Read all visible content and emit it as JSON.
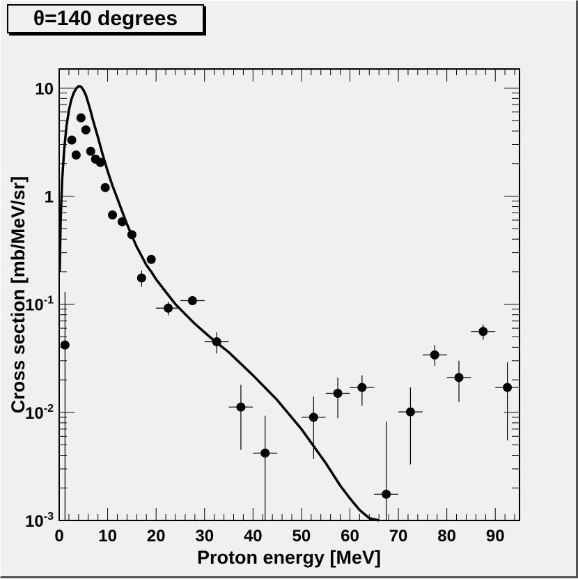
{
  "chart_data": {
    "type": "scatter",
    "title": "θ=140 degrees",
    "xlabel": "Proton energy [MeV]",
    "ylabel": "Cross section [mb/MeV/sr]",
    "xlim": [
      0,
      95
    ],
    "ylim": [
      0.001,
      15
    ],
    "yscale": "log",
    "grid": false,
    "x_ticks": [
      0,
      10,
      20,
      30,
      40,
      50,
      60,
      70,
      80,
      90
    ],
    "y_ticks": [
      {
        "value": 10,
        "mantissa": "10",
        "exp": ""
      },
      {
        "value": 1,
        "mantissa": "1",
        "exp": ""
      },
      {
        "value": 0.1,
        "mantissa": "10",
        "exp": "-1"
      },
      {
        "value": 0.01,
        "mantissa": "10",
        "exp": "-2"
      },
      {
        "value": 0.001,
        "mantissa": "10",
        "exp": "-3"
      }
    ],
    "series": [
      {
        "kind": "points-with-errors",
        "points": [
          {
            "x": 1.2,
            "y": 0.042,
            "xerr": 0,
            "ylo": 0.001,
            "yhi": 0.13
          },
          {
            "x": 2.6,
            "y": 3.3,
            "xerr": 0,
            "ylo": 3.3,
            "yhi": 3.3
          },
          {
            "x": 3.5,
            "y": 2.4,
            "xerr": 0,
            "ylo": 2.4,
            "yhi": 2.4
          },
          {
            "x": 4.5,
            "y": 5.3,
            "xerr": 0,
            "ylo": 5.3,
            "yhi": 5.3
          },
          {
            "x": 5.5,
            "y": 4.1,
            "xerr": 0,
            "ylo": 4.1,
            "yhi": 4.1
          },
          {
            "x": 6.5,
            "y": 2.6,
            "xerr": 0,
            "ylo": 2.6,
            "yhi": 2.6
          },
          {
            "x": 7.5,
            "y": 2.2,
            "xerr": 0,
            "ylo": 2.2,
            "yhi": 2.2
          },
          {
            "x": 8.5,
            "y": 2.05,
            "xerr": 0,
            "ylo": 2.05,
            "yhi": 2.05
          },
          {
            "x": 9.5,
            "y": 1.2,
            "xerr": 0,
            "ylo": 1.2,
            "yhi": 1.2
          },
          {
            "x": 11,
            "y": 0.67,
            "xerr": 0,
            "ylo": 0.67,
            "yhi": 0.67
          },
          {
            "x": 13,
            "y": 0.58,
            "xerr": 0,
            "ylo": 0.58,
            "yhi": 0.58
          },
          {
            "x": 15,
            "y": 0.44,
            "xerr": 0,
            "ylo": 0.44,
            "yhi": 0.44
          },
          {
            "x": 17,
            "y": 0.175,
            "xerr": 0,
            "ylo": 0.145,
            "yhi": 0.205
          },
          {
            "x": 19,
            "y": 0.26,
            "xerr": 0,
            "ylo": 0.26,
            "yhi": 0.26
          },
          {
            "x": 22.5,
            "y": 0.092,
            "xerr": 2.5,
            "ylo": 0.079,
            "yhi": 0.105
          },
          {
            "x": 27.5,
            "y": 0.108,
            "xerr": 2.5,
            "ylo": 0.098,
            "yhi": 0.118
          },
          {
            "x": 32.5,
            "y": 0.045,
            "xerr": 2.5,
            "ylo": 0.035,
            "yhi": 0.055
          },
          {
            "x": 37.5,
            "y": 0.0112,
            "xerr": 2.5,
            "ylo": 0.0045,
            "yhi": 0.018
          },
          {
            "x": 42.5,
            "y": 0.0042,
            "xerr": 2.5,
            "ylo": 0.001,
            "yhi": 0.0093
          },
          {
            "x": 52.5,
            "y": 0.009,
            "xerr": 2.5,
            "ylo": 0.0037,
            "yhi": 0.014
          },
          {
            "x": 57.5,
            "y": 0.015,
            "xerr": 2.5,
            "ylo": 0.0088,
            "yhi": 0.021
          },
          {
            "x": 62.5,
            "y": 0.017,
            "xerr": 2.5,
            "ylo": 0.0115,
            "yhi": 0.022
          },
          {
            "x": 67.5,
            "y": 0.00175,
            "xerr": 2.5,
            "ylo": 0.001,
            "yhi": 0.0082
          },
          {
            "x": 72.5,
            "y": 0.0101,
            "xerr": 2.5,
            "ylo": 0.0033,
            "yhi": 0.017
          },
          {
            "x": 77.5,
            "y": 0.034,
            "xerr": 2.5,
            "ylo": 0.027,
            "yhi": 0.042
          },
          {
            "x": 82.5,
            "y": 0.021,
            "xerr": 2.5,
            "ylo": 0.0125,
            "yhi": 0.03
          },
          {
            "x": 87.5,
            "y": 0.056,
            "xerr": 2.5,
            "ylo": 0.047,
            "yhi": 0.065
          },
          {
            "x": 92.5,
            "y": 0.017,
            "xerr": 2.5,
            "ylo": 0.0055,
            "yhi": 0.029
          }
        ]
      },
      {
        "kind": "line",
        "x": [
          0.1,
          0.3,
          0.6,
          1,
          1.5,
          2,
          2.5,
          3,
          3.5,
          4,
          4.5,
          5,
          5.5,
          6,
          6.5,
          7,
          8,
          9,
          10,
          11,
          12,
          13,
          14,
          15,
          16,
          17,
          18,
          19,
          20,
          22,
          24,
          26,
          28,
          30,
          32,
          35,
          40,
          45,
          50,
          55,
          58,
          60,
          62,
          64,
          66
        ],
        "y": [
          0.2,
          0.6,
          1.4,
          2.6,
          4.4,
          6.2,
          7.8,
          9.0,
          9.9,
          10.4,
          10.3,
          9.6,
          8.6,
          7.3,
          6.1,
          5.0,
          3.5,
          2.4,
          1.7,
          1.25,
          0.95,
          0.72,
          0.55,
          0.43,
          0.34,
          0.28,
          0.23,
          0.2,
          0.17,
          0.13,
          0.1,
          0.081,
          0.066,
          0.055,
          0.046,
          0.036,
          0.022,
          0.013,
          0.007,
          0.0034,
          0.0021,
          0.0016,
          0.00125,
          0.00105,
          0.001
        ]
      }
    ]
  }
}
